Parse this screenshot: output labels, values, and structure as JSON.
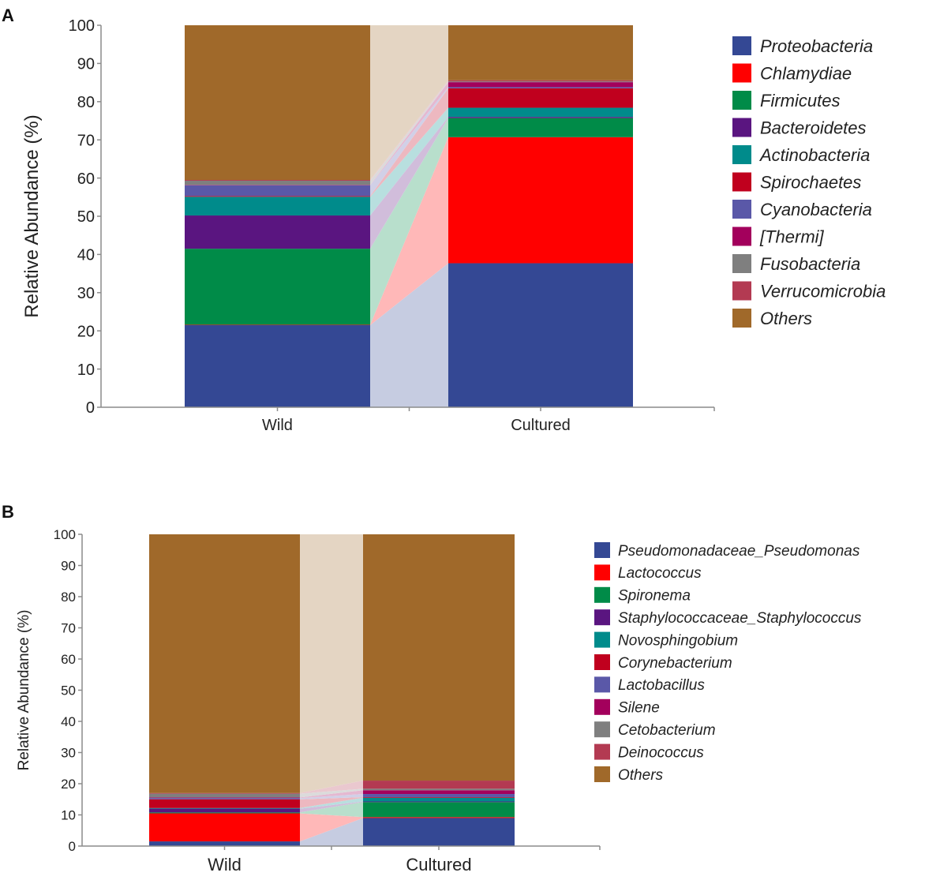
{
  "chart_data": [
    {
      "type": "bar",
      "stacked": true,
      "panel_label": "A",
      "categories": [
        "Wild",
        "Cultured"
      ],
      "ylabel": "Relative Abundance (%)",
      "ylim": [
        0,
        100
      ],
      "yticks": [
        0,
        10,
        20,
        30,
        40,
        50,
        60,
        70,
        80,
        90,
        100
      ],
      "grid": false,
      "legend_position": "right",
      "series": [
        {
          "name": "Proteobacteria",
          "color": "#344894",
          "values": [
            21.5,
            37.7
          ]
        },
        {
          "name": "Chlamydiae",
          "color": "#ff0000",
          "values": [
            0.1,
            33.0
          ]
        },
        {
          "name": "Firmicutes",
          "color": "#008b48",
          "values": [
            19.9,
            5.0
          ]
        },
        {
          "name": "Bacteroidetes",
          "color": "#5a1580",
          "values": [
            8.7,
            0.3
          ]
        },
        {
          "name": "Actinobacteria",
          "color": "#008b8b",
          "values": [
            4.9,
            2.4
          ]
        },
        {
          "name": "Spirochaetes",
          "color": "#c0001e",
          "values": [
            0.2,
            5.1
          ]
        },
        {
          "name": "Cyanobacteria",
          "color": "#5a58a8",
          "values": [
            2.8,
            0.3
          ]
        },
        {
          "name": "[Thermi]",
          "color": "#a3005c",
          "values": [
            0.1,
            1.3
          ]
        },
        {
          "name": "Fusobacteria",
          "color": "#7f7f7f",
          "values": [
            1.1,
            0.2
          ]
        },
        {
          "name": "Verrucomicrobia",
          "color": "#b33a52",
          "values": [
            0.2,
            0.3
          ]
        },
        {
          "name": "Others",
          "color": "#a0692a",
          "values": [
            40.5,
            14.4
          ]
        }
      ]
    },
    {
      "type": "bar",
      "stacked": true,
      "panel_label": "B",
      "categories": [
        "Wild",
        "Cultured"
      ],
      "ylabel": "Relative Abundance (%)",
      "ylim": [
        0,
        100
      ],
      "yticks": [
        0,
        10,
        20,
        30,
        40,
        50,
        60,
        70,
        80,
        90,
        100
      ],
      "grid": false,
      "legend_position": "right",
      "series": [
        {
          "name": "Pseudomonadaceae_Pseudomonas",
          "color": "#344894",
          "values": [
            1.5,
            9.0
          ]
        },
        {
          "name": "Lactococcus",
          "color": "#ff0000",
          "values": [
            9.0,
            0.3
          ]
        },
        {
          "name": "Spironema",
          "color": "#008b48",
          "values": [
            0.3,
            4.8
          ]
        },
        {
          "name": "Staphylococcaceae_Staphylococcus",
          "color": "#5a1580",
          "values": [
            1.2,
            0.2
          ]
        },
        {
          "name": "Novosphingobium",
          "color": "#008b8b",
          "values": [
            0.2,
            1.2
          ]
        },
        {
          "name": "Corynebacterium",
          "color": "#c0001e",
          "values": [
            2.8,
            0.2
          ]
        },
        {
          "name": "Lactobacillus",
          "color": "#5a58a8",
          "values": [
            0.4,
            1.0
          ]
        },
        {
          "name": "Silene",
          "color": "#a3005c",
          "values": [
            0.2,
            1.2
          ]
        },
        {
          "name": "Cetobacterium",
          "color": "#7f7f7f",
          "values": [
            1.2,
            0.5
          ]
        },
        {
          "name": "Deinococcus",
          "color": "#b33a52",
          "values": [
            0.2,
            2.6
          ]
        },
        {
          "name": "Others",
          "color": "#a0692a",
          "values": [
            83.0,
            79.0
          ]
        }
      ]
    }
  ]
}
